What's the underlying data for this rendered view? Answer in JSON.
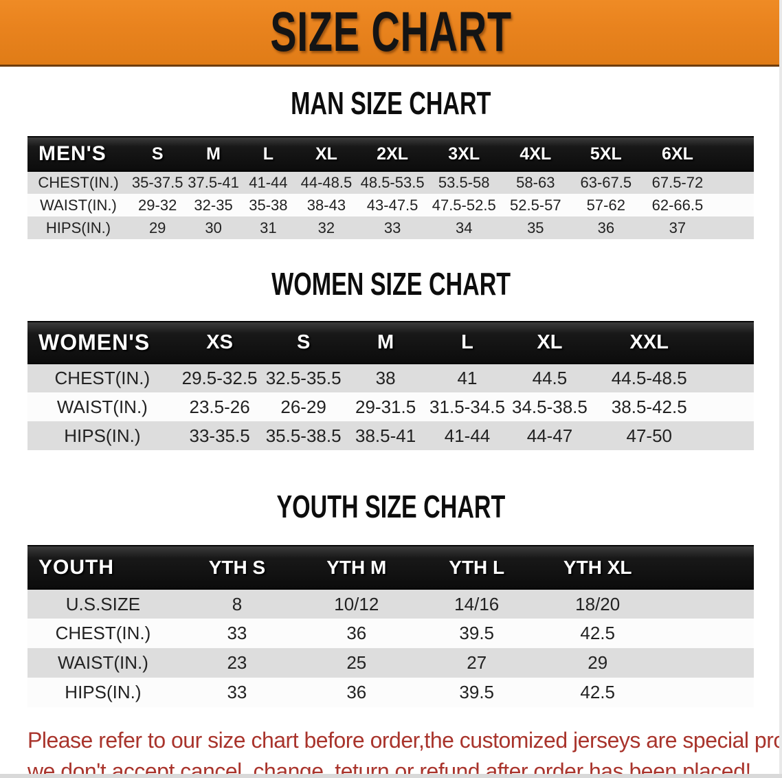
{
  "banner": {
    "title": "SIZE CHART"
  },
  "sections": [
    {
      "id": "men",
      "heading": "MAN SIZE CHART",
      "corner_label": "MEN'S",
      "columns": [
        "S",
        "M",
        "L",
        "XL",
        "2XL",
        "3XL",
        "4XL",
        "5XL",
        "6XL"
      ],
      "rows": [
        {
          "label": "CHEST(IN.)",
          "values": [
            "35-37.5",
            "37.5-41",
            "41-44",
            "44-48.5",
            "48.5-53.5",
            "53.5-58",
            "58-63",
            "63-67.5",
            "67.5-72"
          ]
        },
        {
          "label": "WAIST(IN.)",
          "values": [
            "29-32",
            "32-35",
            "35-38",
            "38-43",
            "43-47.5",
            "47.5-52.5",
            "52.5-57",
            "57-62",
            "62-66.5"
          ]
        },
        {
          "label": "HIPS(IN.)",
          "values": [
            "29",
            "30",
            "31",
            "32",
            "33",
            "34",
            "35",
            "36",
            "37"
          ]
        }
      ]
    },
    {
      "id": "women",
      "heading": "WOMEN SIZE CHART",
      "corner_label": "WOMEN'S",
      "columns": [
        "XS",
        "S",
        "M",
        "L",
        "XL",
        "XXL"
      ],
      "rows": [
        {
          "label": "CHEST(IN.)",
          "values": [
            "29.5-32.5",
            "32.5-35.5",
            "38",
            "41",
            "44.5",
            "44.5-48.5"
          ]
        },
        {
          "label": "WAIST(IN.)",
          "values": [
            "23.5-26",
            "26-29",
            "29-31.5",
            "31.5-34.5",
            "34.5-38.5",
            "38.5-42.5"
          ]
        },
        {
          "label": "HIPS(IN.)",
          "values": [
            "33-35.5",
            "35.5-38.5",
            "38.5-41",
            "41-44",
            "44-47",
            "47-50"
          ]
        }
      ]
    },
    {
      "id": "youth",
      "heading": "YOUTH SIZE CHART",
      "corner_label": "YOUTH",
      "columns": [
        "YTH S",
        "YTH M",
        "YTH L",
        "YTH XL"
      ],
      "rows": [
        {
          "label": "U.S.SIZE",
          "values": [
            "8",
            "10/12",
            "14/16",
            "18/20"
          ]
        },
        {
          "label": "CHEST(IN.)",
          "values": [
            "33",
            "36",
            "39.5",
            "42.5"
          ]
        },
        {
          "label": "WAIST(IN.)",
          "values": [
            "23",
            "25",
            "27",
            "29"
          ]
        },
        {
          "label": "HIPS(IN.)",
          "values": [
            "33",
            "36",
            "39.5",
            "42.5"
          ]
        }
      ]
    }
  ],
  "disclaimer": {
    "line1": "Please refer to our size chart before order,the customized jerseys are special products,",
    "line2": "we don't accept cancel, change, teturn or refund after order has been placed!"
  },
  "colors": {
    "banner_bg": "#E9831E",
    "banner_text": "#141414",
    "bar_bg": "#181818",
    "bar_text": "#FFFFFF",
    "row_gray": "#DDDDDD",
    "row_white": "#FCFCFC",
    "data_text": "#222222",
    "disclaimer_text": "#A9342C"
  }
}
